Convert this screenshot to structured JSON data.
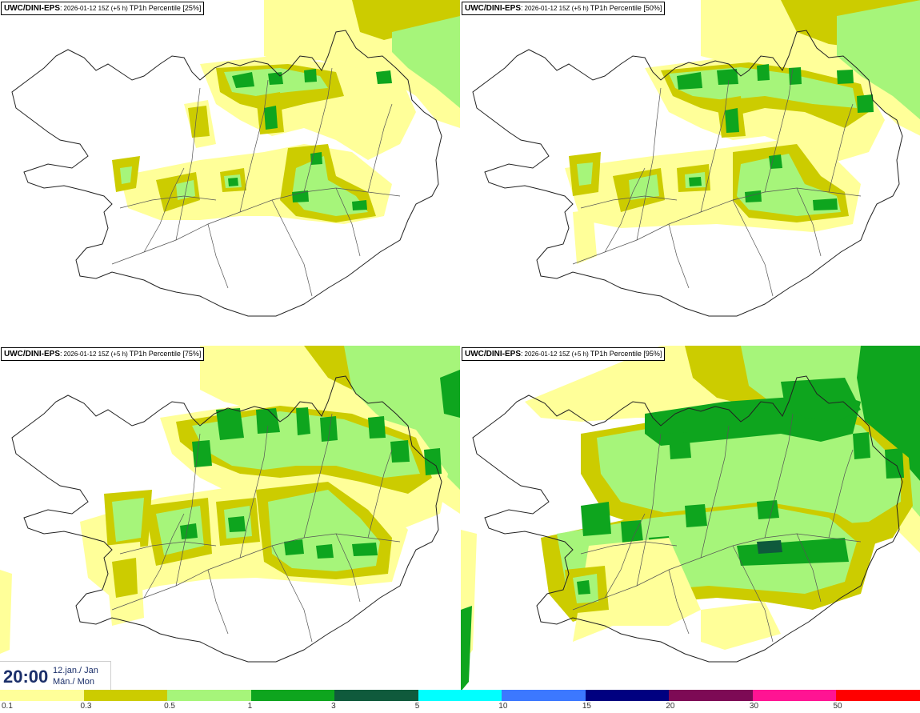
{
  "panels": [
    {
      "model": "UWC/DINI-EPS",
      "run": "2026-01-12 15Z (+5 h)",
      "product": "TP1h Percentile [25%]"
    },
    {
      "model": "UWC/DINI-EPS",
      "run": "2026-01-12 15Z (+5 h)",
      "product": "TP1h Percentile [50%]"
    },
    {
      "model": "UWC/DINI-EPS",
      "run": "2026-01-12 15Z (+5 h)",
      "product": "TP1h Percentile [75%]"
    },
    {
      "model": "UWC/DINI-EPS",
      "run": "2026-01-12 15Z (+5 h)",
      "product": "TP1h Percentile [95%]"
    }
  ],
  "valid_time": {
    "time": "20:00",
    "date_line1": "12.jan./ Jan",
    "date_line2": "Mán./ Mon"
  },
  "legend": {
    "labels": [
      "0.1",
      "0.3",
      "0.5",
      "1",
      "3",
      "5",
      "10",
      "15",
      "20",
      "30",
      "50"
    ],
    "colors": [
      "#ffff99",
      "#cccc00",
      "#a6f57a",
      "#0ea51e",
      "#0f5a3c",
      "#00ffff",
      "#3c78ff",
      "#000080",
      "#7d0a55",
      "#ff1493",
      "#ff0000"
    ]
  }
}
